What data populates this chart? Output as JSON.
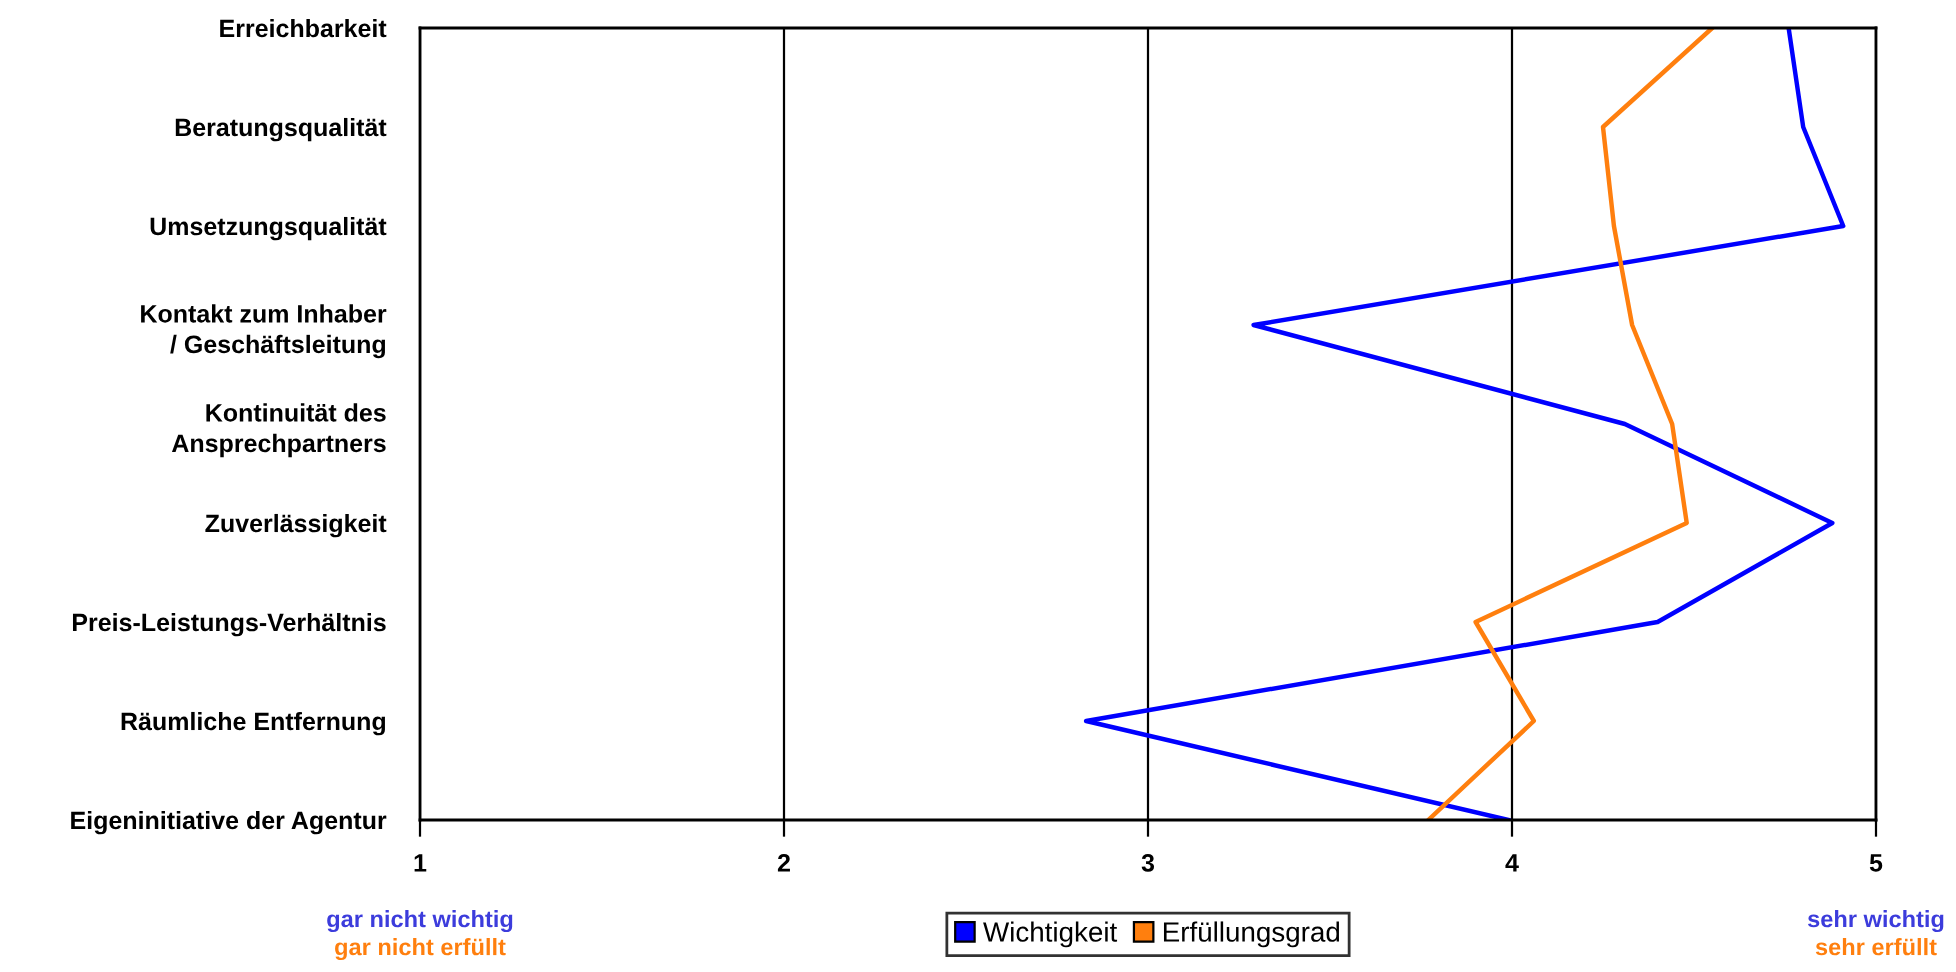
{
  "chart_data": {
    "type": "line",
    "orientation": "horizontal",
    "categories": [
      "Erreichbarkeit",
      "Beratungsqualität",
      "Umsetzungsqualität",
      "Kontakt zum Inhaber\n/ Geschäftsleitung",
      "Kontinuität des\nAnsprechpartners",
      "Zuverlässigkeit",
      "Preis-Leistungs-Verhältnis",
      "Räumliche Entfernung",
      "Eigeninitiative der Agentur"
    ],
    "series": [
      {
        "name": "Wichtigkeit",
        "color": "#0000ff",
        "values": [
          4.76,
          4.8,
          4.91,
          3.29,
          4.31,
          4.88,
          4.4,
          2.83,
          3.99
        ]
      },
      {
        "name": "Erfüllungsgrad",
        "color": "#ff7f0e",
        "values": [
          4.55,
          4.25,
          4.28,
          4.33,
          4.44,
          4.48,
          3.9,
          4.06,
          3.77
        ]
      }
    ],
    "xlim": [
      1,
      5
    ],
    "xticks": [
      1,
      2,
      3,
      4,
      5
    ],
    "grid": "x",
    "legend": "bottom",
    "marker": "none",
    "line_style": "solid",
    "annotations": [
      "gar nicht wichtig",
      "gar nicht erfüllt",
      "sehr wichtig",
      "sehr erfüllt"
    ]
  }
}
